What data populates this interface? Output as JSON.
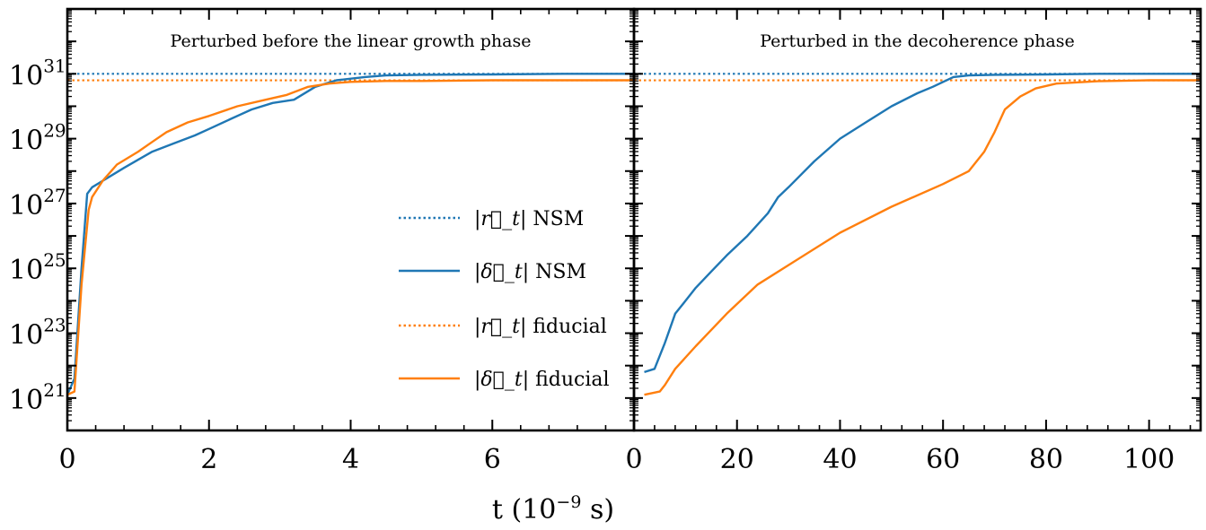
{
  "chart_data": {
    "type": "line",
    "xlabel": "t (10^-9 s)",
    "xlabel_parts": {
      "main": "t (10",
      "exp": "−9",
      "unit": " s)"
    },
    "y_scale": "log",
    "ylim_log10": [
      20.0,
      33.0
    ],
    "y_ticks": [
      {
        "exp": 21,
        "label_base": "10",
        "label_exp": "21"
      },
      {
        "exp": 23,
        "label_base": "10",
        "label_exp": "23"
      },
      {
        "exp": 25,
        "label_base": "10",
        "label_exp": "25"
      },
      {
        "exp": 27,
        "label_base": "10",
        "label_exp": "27"
      },
      {
        "exp": 29,
        "label_base": "10",
        "label_exp": "29"
      },
      {
        "exp": 31,
        "label_base": "10",
        "label_exp": "31"
      }
    ],
    "colors": {
      "nsm": "#1f77b4",
      "fiducial": "#ff7f0e"
    },
    "legend": {
      "location": "right-center of left panel",
      "entries": [
        {
          "symbol": "|r⃗_t|",
          "label": "NSM",
          "style": "dotted",
          "color": "#1f77b4"
        },
        {
          "symbol": "|δ⃗_t|",
          "label": "NSM",
          "style": "solid",
          "color": "#1f77b4"
        },
        {
          "symbol": "|r⃗_t|",
          "label": "fiducial",
          "style": "dotted",
          "color": "#ff7f0e"
        },
        {
          "symbol": "|δ⃗_t|",
          "label": "fiducial",
          "style": "solid",
          "color": "#ff7f0e"
        }
      ]
    },
    "panels": [
      {
        "title": "Perturbed before the linear growth phase",
        "xlim": [
          0,
          8
        ],
        "x_ticks": [
          0,
          2,
          4,
          6
        ],
        "series": [
          {
            "name": "|r_t| NSM",
            "style": "dotted",
            "color": "#1f77b4",
            "log10_y_constant": 31.0
          },
          {
            "name": "|r_t| fiducial",
            "style": "dotted",
            "color": "#ff7f0e",
            "log10_y_constant": 30.8
          },
          {
            "name": "|δ_t| NSM",
            "style": "solid",
            "color": "#1f77b4",
            "x": [
              0.0,
              0.1,
              0.2,
              0.28,
              0.35,
              0.5,
              0.8,
              1.0,
              1.2,
              1.5,
              1.8,
              2.0,
              2.3,
              2.6,
              2.9,
              3.2,
              3.5,
              3.8,
              4.2,
              4.5,
              5.0,
              6.0,
              7.0,
              8.0
            ],
            "log10_y": [
              21.1,
              21.6,
              25.0,
              27.3,
              27.5,
              27.7,
              28.1,
              28.35,
              28.6,
              28.85,
              29.1,
              29.3,
              29.6,
              29.9,
              30.1,
              30.2,
              30.6,
              30.8,
              30.9,
              30.95,
              30.97,
              30.98,
              31.0,
              31.0
            ]
          },
          {
            "name": "|δ_t| fiducial",
            "style": "solid",
            "color": "#ff7f0e",
            "x": [
              0.0,
              0.1,
              0.2,
              0.3,
              0.35,
              0.5,
              0.7,
              1.0,
              1.2,
              1.4,
              1.7,
              2.0,
              2.4,
              2.8,
              3.1,
              3.4,
              3.7,
              4.0,
              4.5,
              5.0,
              6.0,
              7.0,
              8.0
            ],
            "log10_y": [
              21.1,
              21.2,
              24.5,
              26.8,
              27.2,
              27.7,
              28.2,
              28.6,
              28.9,
              29.2,
              29.5,
              29.7,
              30.0,
              30.2,
              30.35,
              30.6,
              30.7,
              30.75,
              30.78,
              30.78,
              30.8,
              30.8,
              30.8
            ]
          }
        ]
      },
      {
        "title": "Perturbed in the decoherence phase",
        "xlim": [
          0,
          110
        ],
        "x_ticks": [
          0,
          20,
          40,
          60,
          80,
          100
        ],
        "series": [
          {
            "name": "|r_t| NSM",
            "style": "dotted",
            "color": "#1f77b4",
            "log10_y_constant": 31.0
          },
          {
            "name": "|r_t| fiducial",
            "style": "dotted",
            "color": "#ff7f0e",
            "log10_y_constant": 30.8
          },
          {
            "name": "|δ_t| NSM",
            "style": "solid",
            "color": "#1f77b4",
            "x": [
              2,
              4,
              6,
              8,
              10,
              12,
              15,
              18,
              22,
              26,
              28,
              30,
              35,
              40,
              45,
              50,
              55,
              58,
              62,
              65,
              70,
              80,
              90,
              100,
              110
            ],
            "log10_y": [
              21.8,
              21.9,
              22.7,
              23.6,
              24.0,
              24.4,
              24.9,
              25.4,
              26.0,
              26.7,
              27.2,
              27.5,
              28.3,
              29.0,
              29.5,
              30.0,
              30.4,
              30.6,
              30.9,
              30.95,
              30.97,
              30.98,
              31.0,
              31.0,
              31.0
            ]
          },
          {
            "name": "|δ_t| fiducial",
            "style": "solid",
            "color": "#ff7f0e",
            "x": [
              2,
              5,
              6,
              8,
              12,
              18,
              24,
              30,
              40,
              50,
              60,
              65,
              68,
              70,
              72,
              75,
              78,
              82,
              90,
              100,
              110
            ],
            "log10_y": [
              21.1,
              21.2,
              21.4,
              21.9,
              22.6,
              23.6,
              24.5,
              25.1,
              26.1,
              26.9,
              27.6,
              28.0,
              28.6,
              29.2,
              29.9,
              30.3,
              30.55,
              30.7,
              30.77,
              30.8,
              30.8
            ]
          }
        ]
      }
    ]
  }
}
